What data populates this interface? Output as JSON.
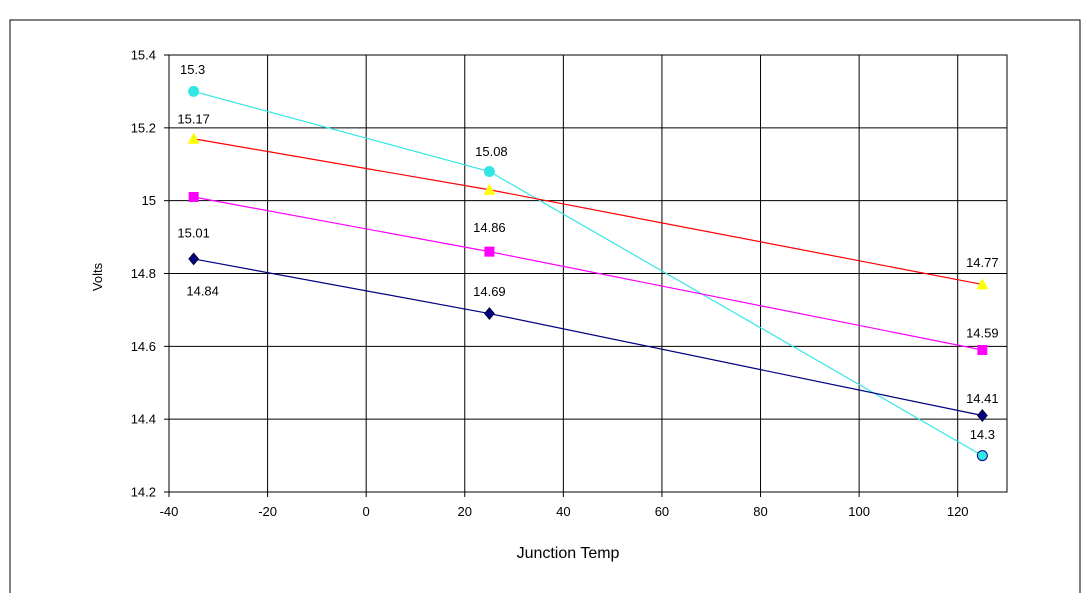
{
  "chart_data": {
    "type": "line",
    "title": "",
    "xlabel": "Junction Temp",
    "ylabel": "Volts",
    "xlim": [
      -40,
      130
    ],
    "ylim": [
      14.2,
      15.4
    ],
    "x_ticks": [
      "-40",
      "-20",
      "0",
      "20",
      "40",
      "60",
      "80",
      "100",
      "120"
    ],
    "y_ticks": [
      "14.2",
      "14.4",
      "14.6",
      "14.8",
      "15",
      "15.2",
      "15.4"
    ],
    "grid": true,
    "legend": "none",
    "series": [
      {
        "color": "#33e6e6",
        "marker": "circle",
        "x": [
          -35,
          25,
          125
        ],
        "y": [
          15.3,
          15.08,
          14.3
        ],
        "labels": [
          "15.3",
          "15.08",
          "14.3"
        ]
      },
      {
        "color": "#ffff00",
        "line_color": "#ff0000",
        "marker": "triangle",
        "x": [
          -35,
          25,
          125
        ],
        "y": [
          15.17,
          15.03,
          14.77
        ],
        "labels": [
          "15.17",
          "",
          "14.77"
        ]
      },
      {
        "color": "#ff00ff",
        "marker": "square",
        "x": [
          -35,
          25,
          125
        ],
        "y": [
          15.01,
          14.86,
          14.59
        ],
        "labels": [
          "15.01",
          "14.86",
          "14.59"
        ]
      },
      {
        "color": "#000080",
        "marker": "diamond",
        "x": [
          -35,
          25,
          125
        ],
        "y": [
          14.84,
          14.69,
          14.41
        ],
        "labels": [
          "14.84",
          "14.69",
          "14.41"
        ]
      }
    ]
  }
}
